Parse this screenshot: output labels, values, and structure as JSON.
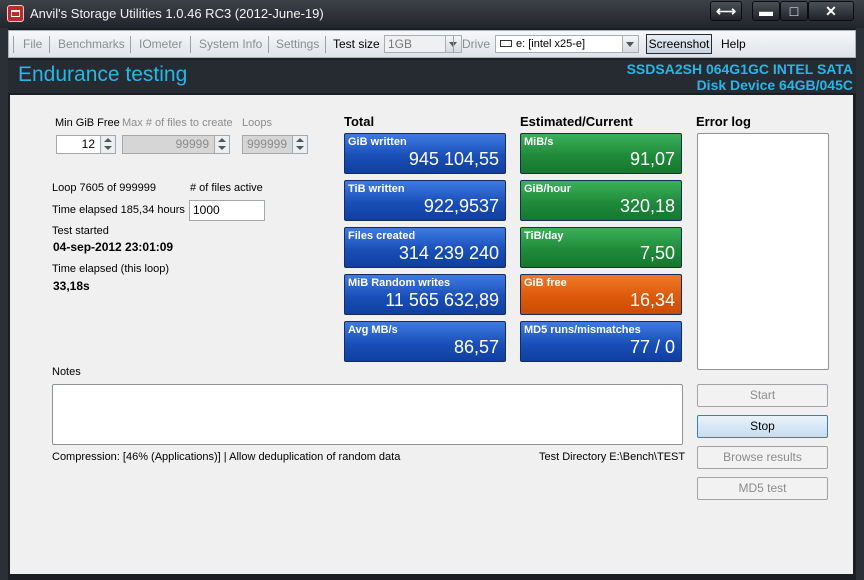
{
  "window": {
    "title": "Anvil's Storage Utilities 1.0.46 RC3 (2012-June-19)",
    "controls": {
      "resize": "⟷",
      "minimize": "▬",
      "maximize": "□",
      "close": "✕"
    }
  },
  "menu": {
    "file": "File",
    "benchmarks": "Benchmarks",
    "iometer": "IOmeter",
    "system_info": "System Info",
    "settings": "Settings",
    "test_size_label": "Test size",
    "test_size_value": "1GB",
    "drive_label": "Drive",
    "drive_value": "e: [intel x25-e]",
    "screenshot": "Screenshot",
    "help": "Help"
  },
  "header": {
    "title": "Endurance testing",
    "device_line1": "SSDSA2SH 064G1GC INTEL SATA",
    "device_line2": "Disk Device 64GB/045C",
    "color": "#27b6e8"
  },
  "settings": {
    "min_gib_free_label": "Min GiB Free",
    "min_gib_free_value": "12",
    "max_files_label": "Max # of files to create",
    "max_files_value": "99999",
    "loops_label": "Loops",
    "loops_value": "999999"
  },
  "status": {
    "loop_text": "Loop 7605 of 999999",
    "files_active_label": "# of files active",
    "files_active_value": "1000",
    "time_elapsed_text": "Time elapsed 185,34 hours",
    "test_started_label": "Test started",
    "test_started_value": "04-sep-2012 23:01:09",
    "time_loop_label": "Time elapsed (this loop)",
    "time_loop_value": "33,18s"
  },
  "total": {
    "heading": "Total",
    "tiles": [
      {
        "label": "GiB written",
        "value": "945 104,55",
        "color": "blue"
      },
      {
        "label": "TiB written",
        "value": "922,9537",
        "color": "blue"
      },
      {
        "label": "Files created",
        "value": "314 239 240",
        "color": "blue"
      },
      {
        "label": "MiB Random writes",
        "value": "11 565 632,89",
        "color": "blue"
      },
      {
        "label": "Avg MB/s",
        "value": "86,57",
        "color": "blue"
      }
    ]
  },
  "estimated": {
    "heading": "Estimated/Current",
    "tiles": [
      {
        "label": "MiB/s",
        "value": "91,07",
        "color": "green"
      },
      {
        "label": "GiB/hour",
        "value": "320,18",
        "color": "green"
      },
      {
        "label": "TiB/day",
        "value": "7,50",
        "color": "green"
      },
      {
        "label": "GiB free",
        "value": "16,34",
        "color": "orange"
      },
      {
        "label": "MD5 runs/mismatches",
        "value": "77 / 0",
        "color": "blue"
      }
    ]
  },
  "error_log": {
    "heading": "Error log"
  },
  "notes": {
    "label": "Notes"
  },
  "footer": {
    "compression": "Compression: [46% (Applications)] | Allow deduplication of random data",
    "test_directory": "Test Directory E:\\Bench\\TEST"
  },
  "buttons": {
    "start": "Start",
    "stop": "Stop",
    "browse": "Browse results",
    "md5": "MD5 test"
  }
}
